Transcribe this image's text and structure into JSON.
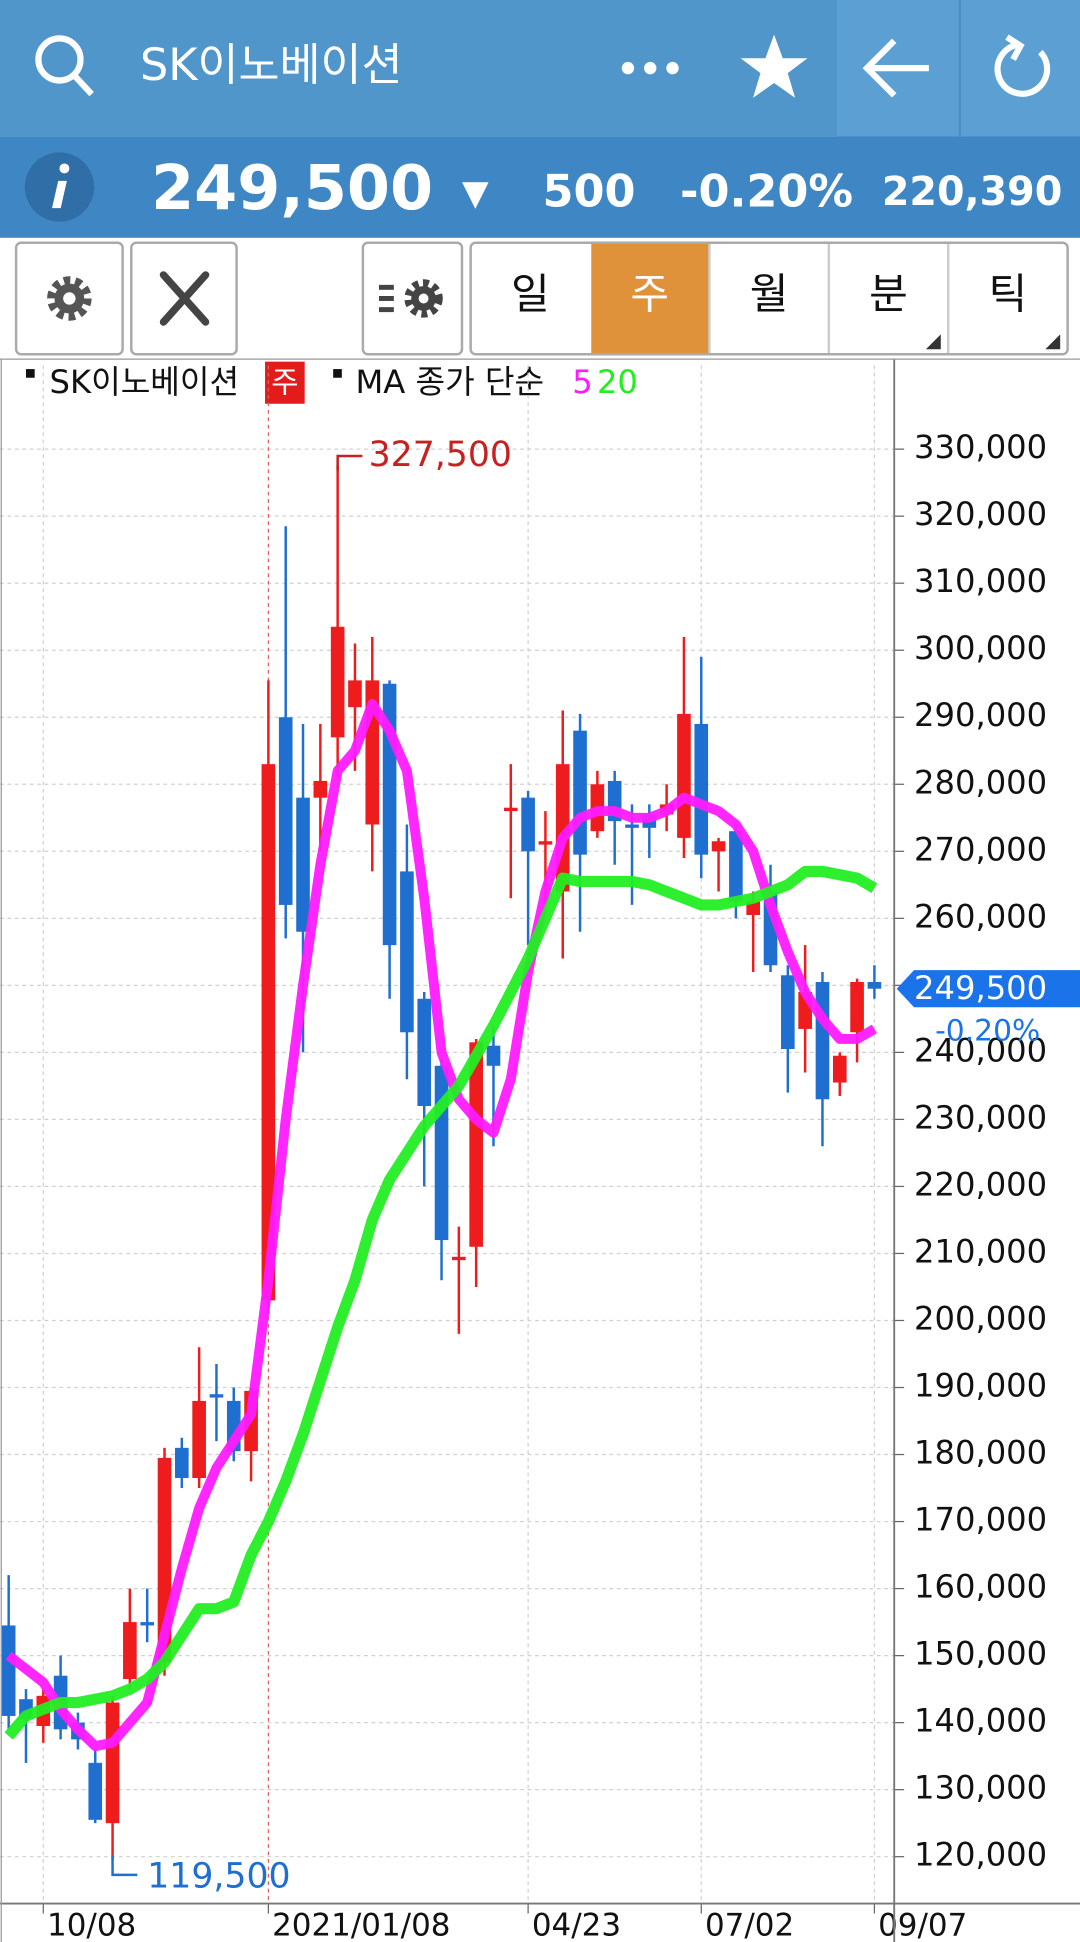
{
  "header": {
    "title": "SK이노베이션"
  },
  "quote": {
    "price": "249,500",
    "direction": "▼",
    "change": "500",
    "change_pct": "-0.20%",
    "volume": "220,390"
  },
  "tabs": [
    "일",
    "주",
    "월",
    "분",
    "틱"
  ],
  "chart_data": {
    "type": "candlestick",
    "series_name": "SK이노베이션",
    "period": "주",
    "legend_label": "MA 종가 단순",
    "categories": [
      null,
      null,
      "10/08",
      null,
      null,
      null,
      null,
      null,
      null,
      null,
      null,
      null,
      null,
      null,
      null,
      "2021/01/08",
      null,
      null,
      null,
      null,
      null,
      null,
      null,
      null,
      null,
      null,
      null,
      null,
      null,
      null,
      "04/23",
      null,
      null,
      null,
      null,
      null,
      null,
      null,
      null,
      null,
      "07/02",
      null,
      null,
      null,
      null,
      null,
      null,
      null,
      null,
      null,
      "09/07"
    ],
    "open": [
      154500,
      143500,
      139500,
      147000,
      140000,
      134000,
      125000,
      146500,
      155000,
      149000,
      181000,
      176500,
      189000,
      188000,
      180500,
      203000,
      290000,
      278000,
      278000,
      287000,
      291500,
      274000,
      295000,
      267000,
      248000,
      238000,
      209000,
      211000,
      241000,
      276000,
      278000,
      271000,
      264000,
      288000,
      273000,
      280500,
      274000,
      275500,
      275500,
      272000,
      289000,
      270000,
      273000,
      260500,
      264000,
      251500,
      243500,
      250500,
      235500,
      243000,
      250500
    ],
    "high": [
      162000,
      145000,
      145000,
      150000,
      141500,
      136000,
      144000,
      160000,
      160000,
      181000,
      182500,
      196000,
      193500,
      190000,
      190000,
      295500,
      318500,
      289000,
      289000,
      327500,
      301000,
      302000,
      295500,
      274000,
      249000,
      239000,
      214000,
      242000,
      244000,
      283000,
      279000,
      276000,
      291000,
      290500,
      282000,
      282000,
      277000,
      277000,
      280000,
      302000,
      299000,
      272000,
      274000,
      264000,
      268000,
      253000,
      256000,
      252000,
      240000,
      251000,
      253000
    ],
    "low": [
      139000,
      134000,
      137000,
      137500,
      136000,
      125000,
      119500,
      145000,
      152000,
      147000,
      175000,
      175000,
      182000,
      179000,
      176000,
      201000,
      257000,
      240000,
      270000,
      281000,
      282000,
      267000,
      248000,
      236000,
      220000,
      206000,
      198000,
      205000,
      226000,
      263000,
      256000,
      262000,
      254000,
      258000,
      272000,
      268000,
      262000,
      269000,
      273000,
      269000,
      266000,
      264000,
      260000,
      252000,
      252000,
      234000,
      237000,
      226000,
      233500,
      238500,
      248000
    ],
    "close": [
      141000,
      140500,
      144000,
      139000,
      137500,
      125500,
      143000,
      155000,
      154500,
      179500,
      176500,
      188000,
      188500,
      180500,
      189500,
      283000,
      262000,
      258000,
      280500,
      303500,
      295500,
      295500,
      256000,
      243000,
      232000,
      212000,
      209500,
      241500,
      238000,
      276500,
      270000,
      271500,
      283000,
      269500,
      280000,
      274500,
      273500,
      273500,
      277000,
      290500,
      269500,
      271500,
      262500,
      262500,
      253000,
      240500,
      249000,
      233000,
      239500,
      250500,
      249500
    ],
    "up_color": "#ee1c1c",
    "down_color": "#1f6fd0",
    "ma": [
      {
        "name": "5",
        "color": "#ff1aff",
        "values": [
          150000,
          148000,
          146000,
          142000,
          139000,
          136500,
          137000,
          140000,
          143000,
          153000,
          163000,
          172000,
          178000,
          182000,
          186000,
          206000,
          230000,
          250000,
          268000,
          282000,
          285000,
          292000,
          288000,
          282000,
          263000,
          240000,
          233000,
          230000,
          228000,
          236000,
          252000,
          264000,
          272000,
          275000,
          276000,
          276000,
          275000,
          275000,
          276000,
          278000,
          277000,
          276000,
          274000,
          270000,
          262000,
          255000,
          249000,
          245000,
          242000,
          242000,
          243500
        ]
      },
      {
        "name": "20",
        "color": "#22ee22",
        "values": [
          138000,
          141000,
          142000,
          143000,
          143000,
          143500,
          144000,
          145000,
          146500,
          149000,
          153000,
          157000,
          157000,
          158000,
          165000,
          170000,
          176000,
          183000,
          191000,
          199000,
          206000,
          215000,
          221000,
          225000,
          229000,
          232000,
          235000,
          239500,
          244000,
          249000,
          254000,
          260000,
          266000,
          265500,
          265500,
          265500,
          265500,
          265000,
          264000,
          263000,
          262000,
          262000,
          262500,
          263000,
          264000,
          265000,
          267000,
          267000,
          266500,
          266000,
          264500
        ]
      }
    ],
    "ylim": [
      113000,
      342500
    ],
    "yticks": [
      {
        "value": 120000,
        "label": "120,000"
      },
      {
        "value": 130000,
        "label": "130,000"
      },
      {
        "value": 140000,
        "label": "140,000"
      },
      {
        "value": 150000,
        "label": "150,000"
      },
      {
        "value": 160000,
        "label": "160,000"
      },
      {
        "value": 170000,
        "label": "170,000"
      },
      {
        "value": 180000,
        "label": "180,000"
      },
      {
        "value": 190000,
        "label": "190,000"
      },
      {
        "value": 200000,
        "label": "200,000"
      },
      {
        "value": 210000,
        "label": "210,000"
      },
      {
        "value": 220000,
        "label": "220,000"
      },
      {
        "value": 230000,
        "label": "230,000"
      },
      {
        "value": 240000,
        "label": "240,000"
      },
      {
        "value": 250000,
        "label": "250,000"
      },
      {
        "value": 260000,
        "label": "260,000"
      },
      {
        "value": 270000,
        "label": "270,000"
      },
      {
        "value": 280000,
        "label": "280,000"
      },
      {
        "value": 290000,
        "label": "290,000"
      },
      {
        "value": 300000,
        "label": "300,000"
      },
      {
        "value": 310000,
        "label": "310,000"
      },
      {
        "value": 320000,
        "label": "320,000"
      },
      {
        "value": 330000,
        "label": "330,000"
      }
    ],
    "high_label": "327,500",
    "low_label": "119,500",
    "last_price": {
      "value": 249500,
      "label": "249,500",
      "change": "-0.20%"
    },
    "grid": true
  }
}
